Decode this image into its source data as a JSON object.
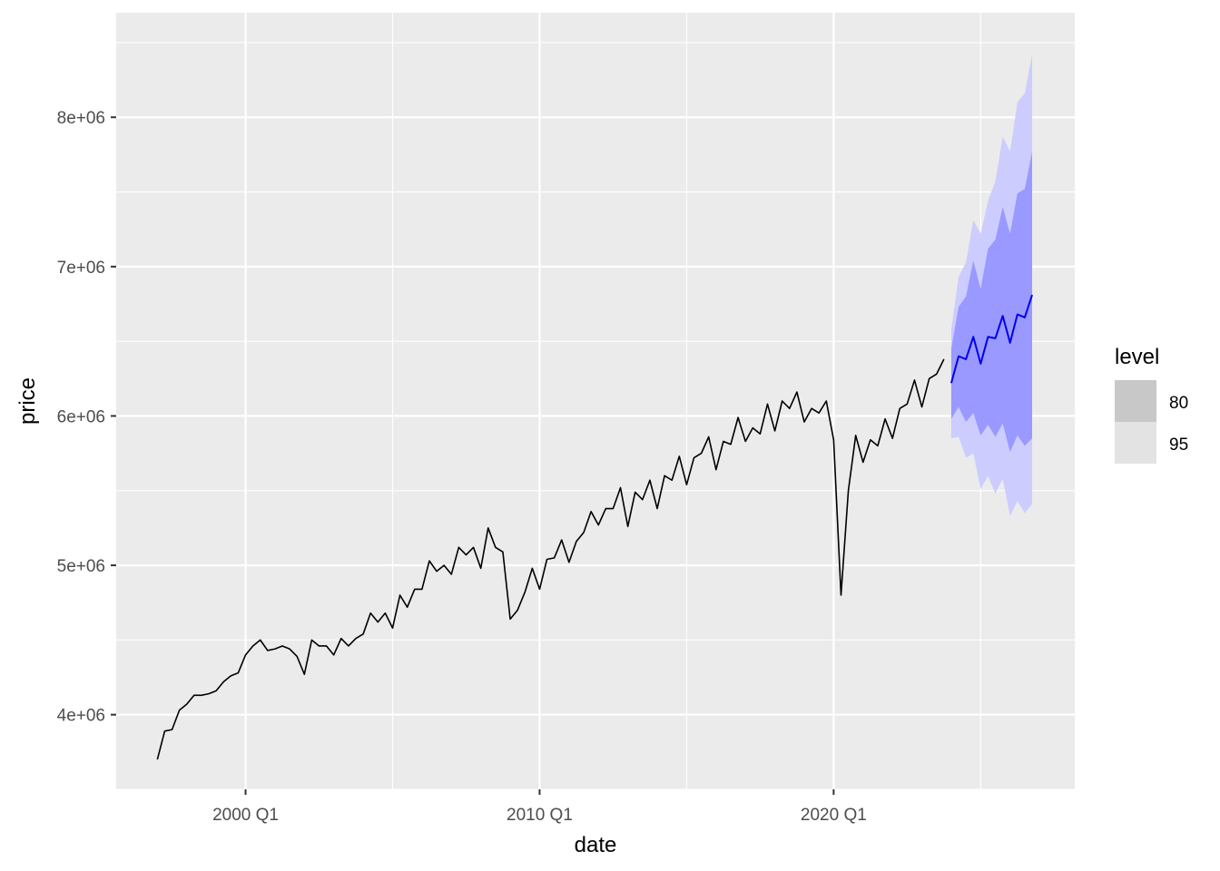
{
  "chart_data": {
    "type": "line",
    "xlabel": "date",
    "ylabel": "price",
    "x_ticks": [
      {
        "label": "2000 Q1",
        "t": 2000.0
      },
      {
        "label": "2010 Q1",
        "t": 2010.0
      },
      {
        "label": "2020 Q1",
        "t": 2020.0
      }
    ],
    "y_ticks": [
      {
        "label": "4e+06",
        "v": 4000000
      },
      {
        "label": "5e+06",
        "v": 5000000
      },
      {
        "label": "6e+06",
        "v": 6000000
      },
      {
        "label": "7e+06",
        "v": 7000000
      },
      {
        "label": "8e+06",
        "v": 8000000
      }
    ],
    "xlim": [
      1995.6,
      2028.2
    ],
    "ylim": [
      3500000,
      8700000
    ],
    "grid": true,
    "legend": {
      "title": "level",
      "position": "right",
      "entries": [
        {
          "label": "80",
          "swatch": "#c8c8c8"
        },
        {
          "label": "95",
          "swatch": "#e3e3e3"
        }
      ]
    },
    "colors": {
      "history_line": "#000000",
      "forecast_line": "#0000ee",
      "band_80": "#9999ff",
      "band_95": "#ccccff",
      "panel_background": "#ebebeb",
      "grid": "#ffffff"
    },
    "history": {
      "start_quarter": "1997 Q1",
      "values": [
        3700000,
        3890000,
        3900000,
        4030000,
        4070000,
        4130000,
        4130000,
        4140000,
        4160000,
        4220000,
        4260000,
        4280000,
        4400000,
        4460000,
        4500000,
        4430000,
        4440000,
        4460000,
        4440000,
        4390000,
        4270000,
        4500000,
        4460000,
        4460000,
        4400000,
        4510000,
        4460000,
        4510000,
        4540000,
        4680000,
        4620000,
        4680000,
        4580000,
        4800000,
        4720000,
        4840000,
        4840000,
        5030000,
        4960000,
        5000000,
        4940000,
        5120000,
        5070000,
        5120000,
        4980000,
        5250000,
        5120000,
        5090000,
        4640000,
        4700000,
        4820000,
        4980000,
        4840000,
        5040000,
        5050000,
        5170000,
        5020000,
        5160000,
        5220000,
        5360000,
        5270000,
        5380000,
        5380000,
        5520000,
        5260000,
        5490000,
        5440000,
        5570000,
        5380000,
        5600000,
        5570000,
        5730000,
        5540000,
        5720000,
        5750000,
        5860000,
        5640000,
        5830000,
        5810000,
        5990000,
        5830000,
        5920000,
        5880000,
        6080000,
        5900000,
        6100000,
        6050000,
        6160000,
        5960000,
        6050000,
        6020000,
        6100000,
        5840000,
        4800000,
        5500000,
        5870000,
        5690000,
        5840000,
        5800000,
        5980000,
        5850000,
        6050000,
        6080000,
        6240000,
        6060000,
        6250000,
        6280000,
        6380000
      ]
    },
    "forecast": {
      "start_quarter": "2024 Q1",
      "mean": [
        6220000,
        6400000,
        6380000,
        6530000,
        6350000,
        6530000,
        6520000,
        6670000,
        6490000,
        6680000,
        6660000,
        6810000
      ],
      "lo80": [
        5980000,
        6060000,
        5960000,
        6020000,
        5870000,
        5940000,
        5860000,
        5950000,
        5760000,
        5870000,
        5800000,
        5850000
      ],
      "hi80": [
        6450000,
        6730000,
        6800000,
        7040000,
        6850000,
        7120000,
        7180000,
        7400000,
        7220000,
        7490000,
        7520000,
        7770000
      ],
      "lo95": [
        5850000,
        5860000,
        5720000,
        5750000,
        5510000,
        5600000,
        5480000,
        5580000,
        5330000,
        5430000,
        5350000,
        5410000
      ],
      "hi95": [
        6580000,
        6930000,
        7030000,
        7310000,
        7220000,
        7440000,
        7570000,
        7870000,
        7770000,
        8100000,
        8160000,
        8420000
      ]
    }
  }
}
